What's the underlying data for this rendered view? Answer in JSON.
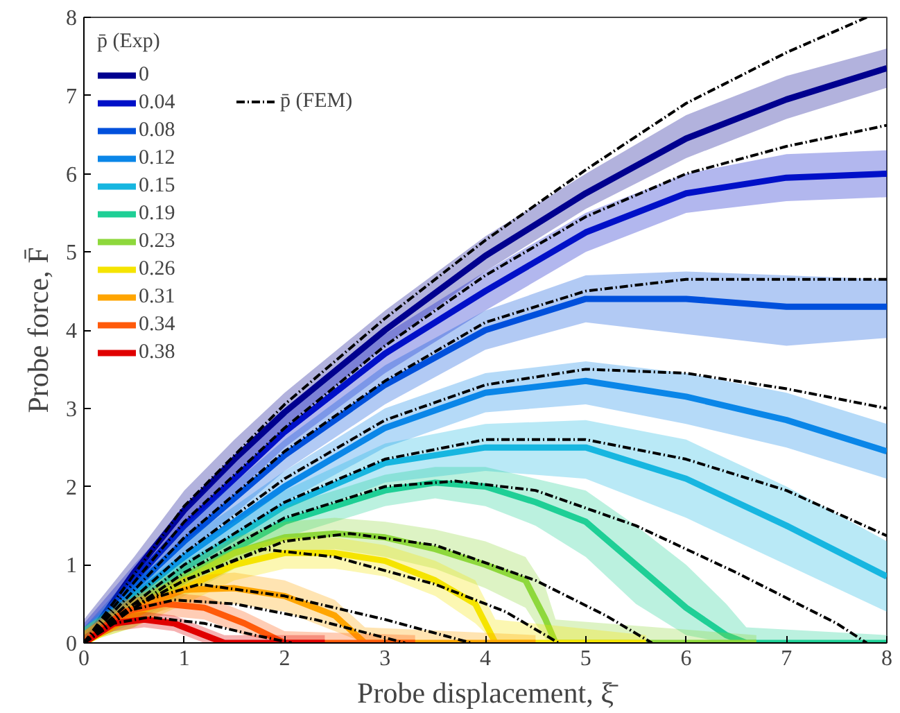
{
  "chart_data": {
    "type": "line",
    "xlabel": "Probe displacement, ξ̄",
    "ylabel": "Probe force, F̄",
    "legend_title": "p̄ (Exp)",
    "xlim": [
      0,
      8
    ],
    "ylim": [
      0,
      8
    ],
    "xticks": [
      0,
      1,
      2,
      3,
      4,
      5,
      6,
      7,
      8
    ],
    "yticks": [
      0,
      1,
      2,
      3,
      4,
      5,
      6,
      7,
      8
    ],
    "grid": false,
    "legend": "top left",
    "marker": "none",
    "series": [
      {
        "name": "0",
        "color": "#00008f",
        "x": [
          0,
          0.5,
          1,
          1.5,
          2,
          3,
          4,
          5,
          6,
          7,
          8
        ],
        "values": [
          0,
          0.9,
          1.7,
          2.35,
          2.95,
          4.0,
          4.95,
          5.75,
          6.45,
          6.95,
          7.35
        ],
        "lower": [
          0,
          0.7,
          1.5,
          2.15,
          2.75,
          3.8,
          4.75,
          5.55,
          6.2,
          6.7,
          7.1
        ],
        "upper": [
          0.3,
          1.1,
          1.95,
          2.6,
          3.2,
          4.25,
          5.2,
          6.0,
          6.75,
          7.25,
          7.6
        ]
      },
      {
        "name": "0.04",
        "color": "#0010c8",
        "x": [
          0,
          0.5,
          1,
          2,
          3,
          4,
          5,
          6,
          7,
          8
        ],
        "values": [
          0,
          0.8,
          1.5,
          2.7,
          3.7,
          4.5,
          5.25,
          5.75,
          5.95,
          6.0
        ],
        "lower": [
          0,
          0.6,
          1.3,
          2.5,
          3.45,
          4.25,
          5.0,
          5.5,
          5.65,
          5.7
        ],
        "upper": [
          0.25,
          1.0,
          1.7,
          2.9,
          3.95,
          4.75,
          5.5,
          6.0,
          6.25,
          6.3
        ]
      },
      {
        "name": "0.08",
        "color": "#0050dc",
        "x": [
          0,
          0.5,
          1,
          2,
          3,
          4,
          5,
          6,
          7,
          8
        ],
        "values": [
          0,
          0.7,
          1.3,
          2.4,
          3.3,
          4.0,
          4.4,
          4.4,
          4.3,
          4.3
        ],
        "lower": [
          0,
          0.5,
          1.1,
          2.2,
          3.05,
          3.75,
          4.1,
          3.95,
          3.8,
          3.9
        ],
        "upper": [
          0.2,
          0.9,
          1.5,
          2.6,
          3.55,
          4.25,
          4.7,
          4.75,
          4.7,
          4.65
        ]
      },
      {
        "name": "0.12",
        "color": "#0a86e8",
        "x": [
          0,
          0.5,
          1,
          2,
          3,
          4,
          5,
          6,
          7,
          8
        ],
        "values": [
          0,
          0.6,
          1.1,
          2.0,
          2.75,
          3.2,
          3.35,
          3.15,
          2.85,
          2.45
        ],
        "lower": [
          0,
          0.4,
          0.9,
          1.8,
          2.5,
          2.95,
          3.05,
          2.8,
          2.5,
          2.1
        ],
        "upper": [
          0.2,
          0.8,
          1.3,
          2.2,
          3.0,
          3.45,
          3.6,
          3.45,
          3.2,
          2.8
        ]
      },
      {
        "name": "0.15",
        "color": "#17b6e0",
        "x": [
          0,
          0.5,
          1,
          2,
          3,
          4,
          5,
          6,
          7,
          8
        ],
        "values": [
          0,
          0.5,
          0.95,
          1.75,
          2.3,
          2.5,
          2.5,
          2.1,
          1.5,
          0.85
        ],
        "lower": [
          0,
          0.3,
          0.75,
          1.55,
          2.05,
          2.2,
          2.1,
          1.6,
          1.0,
          0.4
        ],
        "upper": [
          0.2,
          0.7,
          1.15,
          1.95,
          2.55,
          2.8,
          2.85,
          2.6,
          2.0,
          1.3
        ]
      },
      {
        "name": "0.19",
        "color": "#1fcf96",
        "x": [
          0,
          0.5,
          1,
          2,
          3,
          3.5,
          4,
          4.5,
          5,
          5.5,
          6,
          6.4,
          6.6,
          8
        ],
        "values": [
          0,
          0.45,
          0.85,
          1.55,
          1.95,
          2.05,
          2.0,
          1.8,
          1.55,
          1.0,
          0.45,
          0.1,
          0,
          0
        ],
        "lower": [
          0,
          0.25,
          0.65,
          1.35,
          1.75,
          1.85,
          1.75,
          1.5,
          1.1,
          0.5,
          0.1,
          0,
          0,
          0
        ],
        "upper": [
          0.2,
          0.65,
          1.05,
          1.75,
          2.15,
          2.25,
          2.25,
          2.1,
          1.95,
          1.5,
          1.0,
          0.5,
          0.2,
          0.1
        ]
      },
      {
        "name": "0.23",
        "color": "#8ed83c",
        "x": [
          0,
          0.5,
          1,
          1.5,
          2,
          2.5,
          3,
          3.5,
          4,
          4.4,
          4.6,
          4.7,
          6.7
        ],
        "values": [
          0,
          0.4,
          0.8,
          1.15,
          1.35,
          1.4,
          1.35,
          1.2,
          1.0,
          0.8,
          0.3,
          0,
          0
        ],
        "lower": [
          0,
          0.2,
          0.6,
          0.95,
          1.15,
          1.2,
          1.1,
          0.95,
          0.7,
          0.45,
          0.05,
          0,
          0
        ],
        "upper": [
          0.2,
          0.6,
          1.0,
          1.35,
          1.55,
          1.6,
          1.55,
          1.45,
          1.3,
          1.1,
          0.7,
          0.3,
          0.1
        ]
      },
      {
        "name": "0.26",
        "color": "#f5e400",
        "x": [
          0,
          0.5,
          1,
          1.5,
          2,
          2.5,
          3,
          3.5,
          3.9,
          4.1,
          5.6
        ],
        "values": [
          0,
          0.35,
          0.7,
          1.0,
          1.15,
          1.15,
          1.05,
          0.8,
          0.5,
          0,
          0
        ],
        "lower": [
          0,
          0.2,
          0.5,
          0.8,
          0.95,
          0.95,
          0.85,
          0.6,
          0.25,
          0,
          0
        ],
        "upper": [
          0.15,
          0.55,
          0.9,
          1.2,
          1.35,
          1.35,
          1.25,
          1.05,
          0.8,
          0.3,
          0.1
        ]
      },
      {
        "name": "0.31",
        "color": "#ffa500",
        "x": [
          0,
          0.5,
          1,
          1.5,
          2,
          2.5,
          2.8,
          4.5
        ],
        "values": [
          0,
          0.45,
          0.68,
          0.7,
          0.6,
          0.35,
          0,
          0
        ],
        "lower": [
          0,
          0.3,
          0.5,
          0.5,
          0.4,
          0.15,
          0,
          0
        ],
        "upper": [
          0.15,
          0.6,
          0.85,
          0.9,
          0.8,
          0.55,
          0.2,
          0.1
        ]
      },
      {
        "name": "0.34",
        "color": "#ff5a0a",
        "x": [
          0,
          0.4,
          0.8,
          1.2,
          1.6,
          2.0,
          3.3
        ],
        "values": [
          0,
          0.4,
          0.5,
          0.45,
          0.25,
          0,
          0
        ],
        "lower": [
          0,
          0.25,
          0.35,
          0.3,
          0.1,
          0,
          0
        ],
        "upper": [
          0.15,
          0.55,
          0.65,
          0.6,
          0.4,
          0.15,
          0.1
        ]
      },
      {
        "name": "0.38",
        "color": "#e00000",
        "x": [
          0,
          0.3,
          0.6,
          0.9,
          1.2,
          1.4,
          2.4
        ],
        "values": [
          0,
          0.25,
          0.3,
          0.25,
          0.1,
          0,
          0
        ],
        "lower": [
          0,
          0.15,
          0.2,
          0.15,
          0,
          0,
          0
        ],
        "upper": [
          0.1,
          0.35,
          0.4,
          0.35,
          0.2,
          0.1,
          0.1
        ]
      },
      {
        "name": "p̄ (FEM)",
        "color": "#000000",
        "line_style": "dashed",
        "x": [
          0,
          1,
          2,
          3,
          4,
          5,
          6,
          7,
          7.8
        ],
        "values": [
          0,
          1.75,
          3.05,
          4.15,
          5.15,
          6.05,
          6.9,
          7.55,
          8.0
        ]
      },
      {
        "color": "#000000",
        "line_style": "dashed",
        "x": [
          0,
          1,
          2,
          3,
          4,
          5,
          6,
          7,
          8
        ],
        "values": [
          0,
          1.55,
          2.75,
          3.8,
          4.7,
          5.45,
          6.0,
          6.35,
          6.62
        ]
      },
      {
        "color": "#000000",
        "line_style": "dashed",
        "x": [
          0,
          1,
          2,
          3,
          4,
          5,
          6,
          7,
          8
        ],
        "values": [
          0,
          1.35,
          2.45,
          3.35,
          4.1,
          4.5,
          4.65,
          4.65,
          4.65
        ]
      },
      {
        "color": "#000000",
        "line_style": "dashed",
        "x": [
          0,
          1,
          2,
          3,
          4,
          5,
          6,
          7,
          8
        ],
        "values": [
          0,
          1.15,
          2.1,
          2.85,
          3.3,
          3.5,
          3.45,
          3.25,
          3.0
        ]
      },
      {
        "color": "#000000",
        "line_style": "dashed",
        "x": [
          0,
          1,
          2,
          3,
          4,
          5,
          6,
          7,
          8
        ],
        "values": [
          0,
          1.0,
          1.8,
          2.35,
          2.6,
          2.6,
          2.35,
          1.95,
          1.37
        ]
      },
      {
        "color": "#000000",
        "line_style": "dashed",
        "x": [
          0,
          1,
          2,
          3,
          3.7,
          4.5,
          5.5,
          6.5,
          7.5,
          7.8
        ],
        "values": [
          0,
          0.9,
          1.6,
          2.0,
          2.07,
          1.95,
          1.5,
          0.9,
          0.25,
          0
        ]
      },
      {
        "color": "#000000",
        "line_style": "dashed",
        "x": [
          0,
          0.5,
          1,
          2,
          2.65,
          3.5,
          4.5,
          5.2,
          5.66
        ],
        "values": [
          0,
          0.45,
          0.8,
          1.3,
          1.4,
          1.25,
          0.8,
          0.35,
          0
        ]
      },
      {
        "color": "#000000",
        "line_style": "dashed",
        "x": [
          0,
          0.5,
          1,
          1.77,
          2.5,
          3.5,
          4.2,
          4.73
        ],
        "values": [
          0,
          0.45,
          0.8,
          1.2,
          1.1,
          0.75,
          0.4,
          0
        ]
      },
      {
        "color": "#000000",
        "line_style": "dashed",
        "x": [
          0,
          0.5,
          1.15,
          2,
          3,
          3.86
        ],
        "values": [
          0,
          0.5,
          0.75,
          0.6,
          0.3,
          0
        ]
      },
      {
        "color": "#000000",
        "line_style": "dashed",
        "x": [
          0,
          0.4,
          0.9,
          1.5,
          2.3,
          3.2
        ],
        "values": [
          0,
          0.4,
          0.55,
          0.5,
          0.3,
          0
        ]
      },
      {
        "color": "#000000",
        "line_style": "dashed",
        "x": [
          0,
          0.3,
          0.65,
          1.2,
          1.7,
          2.07
        ],
        "values": [
          0,
          0.25,
          0.33,
          0.25,
          0.1,
          0
        ]
      }
    ]
  }
}
